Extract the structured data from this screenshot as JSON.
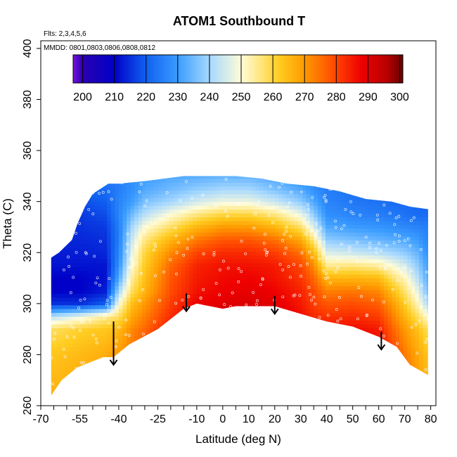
{
  "chart_data": {
    "type": "heatmap",
    "title": "ATOM1 Southbound T",
    "flights_note": "Flts: 2,3,4,5,6",
    "dates_note": "MMDD: 0801,0803,0806,0808,0812",
    "xlabel": "Latitude (deg N)",
    "ylabel": "Theta (C)",
    "xlim": [
      -70,
      82
    ],
    "ylim": [
      260,
      403
    ],
    "x_ticks": [
      -70,
      -55,
      -40,
      -25,
      -10,
      0,
      10,
      20,
      30,
      40,
      50,
      60,
      70,
      80
    ],
    "x_minor_ticks": [
      -65,
      -60,
      -50,
      -45,
      -35,
      -30,
      -20,
      -15,
      -5,
      5,
      15,
      25,
      35,
      45,
      55,
      65,
      75
    ],
    "y_ticks": [
      260,
      280,
      300,
      320,
      340,
      360,
      380,
      400
    ],
    "colorbar": {
      "min": 197,
      "max": 301,
      "ticks": [
        200,
        210,
        220,
        230,
        240,
        250,
        260,
        270,
        280,
        290,
        300
      ],
      "divisions": [
        200,
        210,
        220,
        230,
        240,
        250,
        260,
        270,
        280,
        290,
        300
      ],
      "stops": [
        {
          "value": 197,
          "color": "#7a10e0"
        },
        {
          "value": 200,
          "color": "#2a00b0"
        },
        {
          "value": 210,
          "color": "#0000c8"
        },
        {
          "value": 220,
          "color": "#1060f0"
        },
        {
          "value": 230,
          "color": "#3a9cff"
        },
        {
          "value": 240,
          "color": "#a6d8ff"
        },
        {
          "value": 250,
          "color": "#fffcd8"
        },
        {
          "value": 256,
          "color": "#ffe680"
        },
        {
          "value": 262,
          "color": "#ffcc20"
        },
        {
          "value": 270,
          "color": "#ff9a00"
        },
        {
          "value": 280,
          "color": "#ff4400"
        },
        {
          "value": 288,
          "color": "#ee0000"
        },
        {
          "value": 296,
          "color": "#b80000"
        },
        {
          "value": 301,
          "color": "#650000"
        }
      ]
    },
    "boundary_top": [
      [
        -66,
        318
      ],
      [
        -63,
        320
      ],
      [
        -58,
        325
      ],
      [
        -56,
        331
      ],
      [
        -53,
        338
      ],
      [
        -50,
        343
      ],
      [
        -44,
        347
      ],
      [
        -40,
        347
      ],
      [
        -30,
        348
      ],
      [
        -15,
        350
      ],
      [
        -5,
        350
      ],
      [
        5,
        350
      ],
      [
        15,
        349
      ],
      [
        25,
        347
      ],
      [
        35,
        346
      ],
      [
        45,
        344
      ],
      [
        55,
        341
      ],
      [
        65,
        340
      ],
      [
        72,
        338
      ],
      [
        79,
        337
      ]
    ],
    "boundary_bottom": [
      [
        -66,
        264
      ],
      [
        -62,
        270
      ],
      [
        -56,
        275
      ],
      [
        -46,
        279
      ],
      [
        -42,
        279
      ],
      [
        -36,
        284
      ],
      [
        -25,
        290
      ],
      [
        -15,
        298
      ],
      [
        -10,
        300
      ],
      [
        0,
        298
      ],
      [
        5,
        299
      ],
      [
        15,
        299
      ],
      [
        20,
        299
      ],
      [
        40,
        293
      ],
      [
        50,
        291
      ],
      [
        60,
        287
      ],
      [
        67,
        283
      ],
      [
        72,
        276
      ],
      [
        79,
        272
      ]
    ],
    "temperature_field": {
      "lat_nodes": [
        -66,
        -55,
        -45,
        -40,
        -35,
        -30,
        -20,
        -10,
        0,
        10,
        20,
        30,
        35,
        40,
        50,
        60,
        65,
        70,
        75,
        79
      ],
      "theta_nodes": [
        265,
        280,
        290,
        295,
        300,
        305,
        310,
        315,
        320,
        325,
        330,
        335,
        340,
        345,
        350
      ],
      "rows": [
        [
          266,
          268,
          270,
          272,
          276,
          285,
          292,
          296,
          296,
          296,
          296,
          293,
          291,
          290,
          290,
          288,
          282,
          276,
          270,
          266
        ],
        [
          263,
          265,
          267,
          270,
          274,
          280,
          290,
          295,
          297,
          297,
          297,
          294,
          292,
          290,
          290,
          288,
          281,
          274,
          268,
          263
        ],
        [
          258,
          261,
          263,
          265,
          272,
          276,
          286,
          292,
          295,
          295,
          294,
          290,
          288,
          286,
          287,
          285,
          277,
          270,
          264,
          258
        ],
        [
          242,
          248,
          255,
          258,
          268,
          273,
          283,
          290,
          292,
          293,
          291,
          287,
          283,
          282,
          283,
          281,
          274,
          266,
          258,
          250
        ],
        [
          215,
          215,
          220,
          250,
          264,
          270,
          281,
          288,
          290,
          291,
          290,
          285,
          281,
          278,
          279,
          277,
          270,
          262,
          252,
          240
        ],
        [
          210,
          210,
          213,
          240,
          258,
          266,
          279,
          286,
          288,
          289,
          288,
          284,
          279,
          273,
          274,
          272,
          265,
          257,
          247,
          235
        ],
        [
          210,
          210,
          212,
          232,
          254,
          264,
          278,
          285,
          287,
          288,
          286,
          282,
          276,
          266,
          266,
          265,
          258,
          252,
          242,
          232
        ],
        [
          212,
          212,
          212,
          228,
          250,
          262,
          276,
          284,
          286,
          286,
          285,
          280,
          272,
          255,
          256,
          254,
          250,
          245,
          238,
          230
        ],
        [
          213,
          213,
          214,
          226,
          247,
          260,
          272,
          280,
          283,
          283,
          281,
          275,
          265,
          246,
          244,
          242,
          240,
          238,
          234,
          228
        ],
        [
          214,
          214,
          215,
          225,
          244,
          256,
          266,
          274,
          278,
          278,
          275,
          268,
          256,
          238,
          236,
          234,
          233,
          232,
          230,
          226
        ],
        [
          215,
          215,
          216,
          225,
          240,
          250,
          258,
          266,
          270,
          270,
          266,
          258,
          246,
          232,
          230,
          229,
          228,
          227,
          226,
          225
        ],
        [
          216,
          216,
          218,
          226,
          235,
          242,
          250,
          256,
          260,
          260,
          256,
          248,
          238,
          228,
          226,
          225,
          224,
          223,
          222,
          222
        ],
        [
          218,
          218,
          220,
          226,
          230,
          236,
          240,
          245,
          248,
          248,
          244,
          238,
          232,
          226,
          224,
          223,
          222,
          222,
          221,
          221
        ],
        [
          220,
          220,
          222,
          225,
          228,
          232,
          235,
          238,
          240,
          240,
          236,
          232,
          228,
          225,
          223,
          222,
          221,
          221,
          220,
          220
        ],
        [
          222,
          222,
          224,
          226,
          228,
          230,
          232,
          233,
          234,
          234,
          232,
          228,
          226,
          224,
          222,
          221,
          220,
          220,
          220,
          220
        ]
      ]
    },
    "arrows": [
      {
        "x": -42,
        "y_top": 293,
        "y_tip": 276
      },
      {
        "x": -14,
        "y_top": 304,
        "y_tip": 297
      },
      {
        "x": 20,
        "y_top": 303,
        "y_tip": 296
      },
      {
        "x": 61,
        "y_top": 289,
        "y_tip": 282
      }
    ]
  }
}
